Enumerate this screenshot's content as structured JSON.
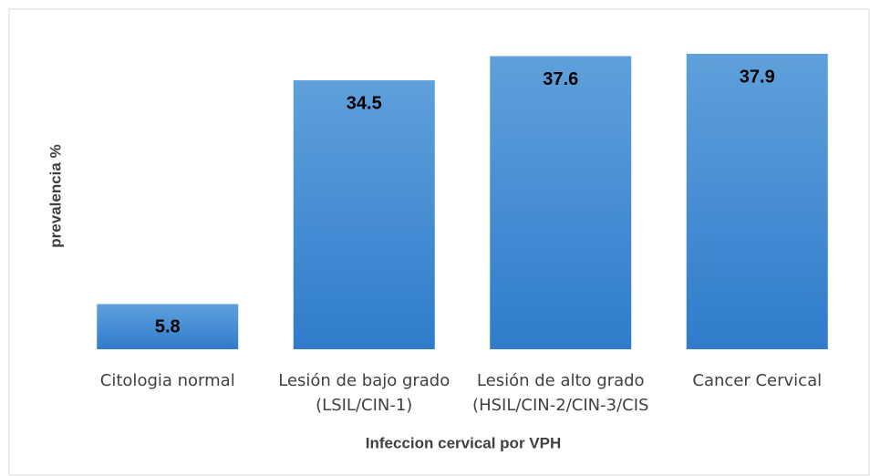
{
  "chart_data": {
    "type": "bar",
    "x_label": "Infeccion cervical por VPH",
    "y_label": "prevalencia %",
    "categories": [
      "Citologia normal",
      "Lesión de bajo grado\n(LSIL/CIN-1)",
      "Lesión de alto grado\n(HSIL/CIN-2/CIN-3/CIS",
      "Cancer Cervical"
    ],
    "values": [
      5.8,
      34.5,
      37.6,
      37.9
    ],
    "color": "#4a90d9"
  }
}
